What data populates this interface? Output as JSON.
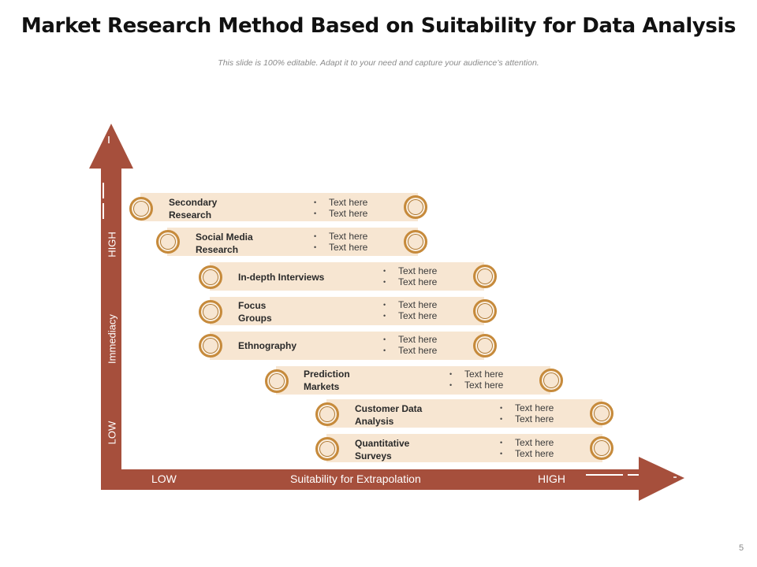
{
  "title": "Market Research Method Based on Suitability for Data Analysis",
  "subtitle": "This slide is 100% editable. Adapt it to your need and capture your audience’s attention.",
  "slide_number": "5",
  "colors": {
    "axis": "#a64f3c",
    "bar_fill": "#f7e6d2",
    "circle_ring": "#c68a3b"
  },
  "y_axis": {
    "title": "Immediacy",
    "low": "LOW",
    "high": "HIGH"
  },
  "x_axis": {
    "title": "Suitability for Extrapolation",
    "low": "LOW",
    "high": "HIGH"
  },
  "methods": [
    {
      "name": "Secondary\nResearch",
      "points": [
        "Text here",
        "Text here"
      ]
    },
    {
      "name": "Social Media\nResearch",
      "points": [
        "Text here",
        "Text here"
      ]
    },
    {
      "name": "In-depth Interviews",
      "points": [
        "Text here",
        "Text here"
      ]
    },
    {
      "name": "Focus\nGroups",
      "points": [
        "Text here",
        "Text here"
      ]
    },
    {
      "name": "Ethnography",
      "points": [
        "Text here",
        "Text here"
      ]
    },
    {
      "name": "Prediction\nMarkets",
      "points": [
        "Text here",
        "Text here"
      ]
    },
    {
      "name": "Customer Data\nAnalysis",
      "points": [
        "Text here",
        "Text here"
      ]
    },
    {
      "name": "Quantitative\nSurveys",
      "points": [
        "Text here",
        "Text here"
      ]
    }
  ]
}
